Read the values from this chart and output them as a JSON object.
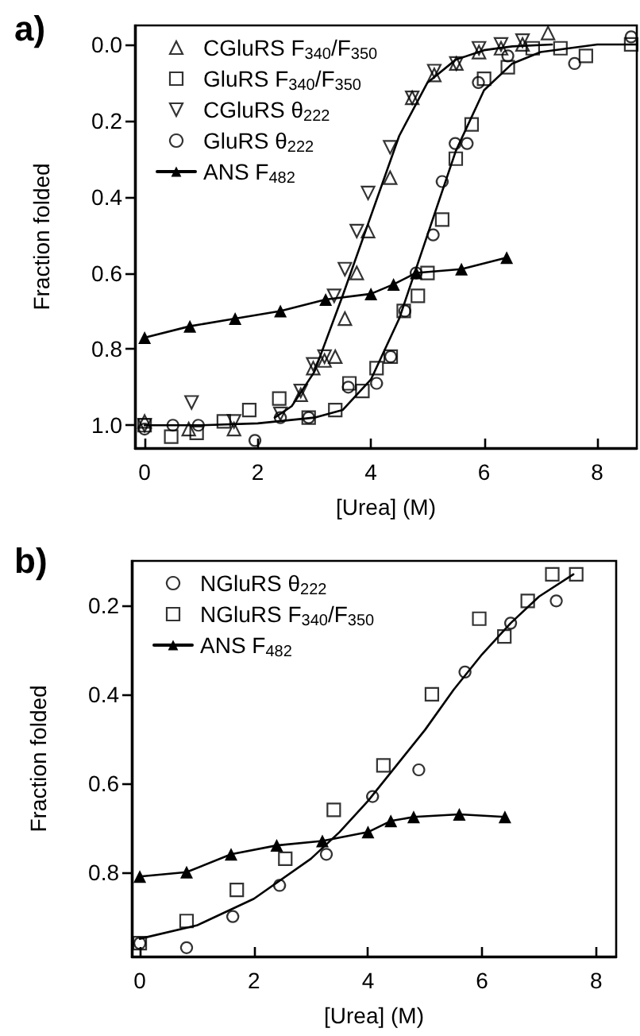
{
  "chart_data": [
    {
      "type": "scatter",
      "title": "a)",
      "xlabel": "[Urea] (M)",
      "ylabel": "Fraction folded",
      "xlim": [
        -0.17,
        8.7
      ],
      "xticks": [
        0,
        2,
        4,
        6,
        8
      ],
      "ylim": [
        1.06,
        -0.05
      ],
      "yticks": [
        {
          "value": 0,
          "label": "0.0"
        },
        0.2,
        0.4,
        0.6,
        0.8,
        {
          "value": 1,
          "label": "1.0"
        }
      ],
      "legend": "top left",
      "grid": false,
      "series": [
        {
          "name": "CGluRS F$_{340}$/F$_{350}$",
          "marker": "triangle",
          "color": "#000000",
          "x": [
            0,
            0.78,
            1.58,
            2.76,
            2.98,
            3.18,
            3.37,
            3.54,
            3.75,
            3.95,
            4.34,
            4.73,
            5.12,
            5.51,
            5.91,
            6.3,
            6.68,
            7.13
          ],
          "values": [
            0.99,
            1.01,
            1.01,
            0.92,
            0.85,
            0.83,
            0.82,
            0.72,
            0.6,
            0.49,
            0.35,
            0.14,
            0.08,
            0.05,
            0.02,
            0.01,
            0.0,
            -0.03
          ]
        },
        {
          "name": "GluRS F$_{340}$/F$_{350}$",
          "marker": "square",
          "color": "#000000",
          "x": [
            0,
            0.47,
            0.92,
            1.4,
            1.85,
            2.38,
            2.9,
            3.37,
            3.62,
            3.85,
            4.1,
            4.35,
            4.58,
            4.83,
            5.0,
            5.26,
            5.5,
            5.78,
            6.0,
            6.42,
            6.86,
            7.35,
            7.8,
            8.6
          ],
          "values": [
            1.0,
            1.03,
            1.02,
            0.99,
            0.96,
            0.93,
            0.98,
            0.96,
            0.89,
            0.91,
            0.85,
            0.82,
            0.7,
            0.66,
            0.6,
            0.46,
            0.3,
            0.21,
            0.09,
            0.06,
            0.01,
            0.01,
            0.03,
            0.0
          ]
        },
        {
          "name": "CGluRS θ$_{222}$",
          "marker": "triangle-down",
          "color": "#000000",
          "x": [
            0,
            0.83,
            1.58,
            2.4,
            2.76,
            2.98,
            3.18,
            3.35,
            3.54,
            3.75,
            3.95,
            4.34,
            4.73,
            5.12,
            5.51,
            5.91,
            6.3,
            6.68
          ],
          "values": [
            1.0,
            0.94,
            0.99,
            0.97,
            0.91,
            0.84,
            0.82,
            0.66,
            0.59,
            0.49,
            0.39,
            0.27,
            0.14,
            0.07,
            0.05,
            0.01,
            0.0,
            -0.01
          ]
        },
        {
          "name": "GluRS θ$_{222}$",
          "marker": "circle",
          "color": "#000000",
          "x": [
            0,
            0.5,
            0.95,
            1.95,
            2.4,
            2.9,
            3.6,
            4.1,
            4.35,
            4.6,
            4.8,
            5.1,
            5.26,
            5.49,
            5.7,
            5.9,
            6.42,
            7.6,
            8.6
          ],
          "values": [
            1.01,
            1.0,
            1.0,
            1.04,
            0.98,
            0.98,
            0.9,
            0.89,
            0.82,
            0.7,
            0.6,
            0.5,
            0.36,
            0.26,
            0.26,
            0.1,
            0.03,
            0.05,
            -0.02
          ]
        },
        {
          "name": "ANS F$_{482}$",
          "type": "line",
          "marker": "triangle",
          "color": "#000000",
          "x": [
            0,
            0.8,
            1.6,
            2.4,
            3.2,
            4.0,
            4.4,
            4.8,
            5.6,
            6.4
          ],
          "values": [
            0.77,
            0.74,
            0.72,
            0.7,
            0.67,
            0.655,
            0.63,
            0.6,
            0.59,
            0.56
          ]
        },
        {
          "type": "line",
          "marker": "none",
          "color": "#000000",
          "x": [
            2.3,
            2.6,
            3.0,
            3.5,
            4.0,
            4.5,
            5.0,
            5.5,
            6.0,
            6.5,
            7.2
          ],
          "values": [
            0.98,
            0.95,
            0.86,
            0.66,
            0.45,
            0.24,
            0.1,
            0.04,
            0.015,
            0.005,
            0.0
          ]
        },
        {
          "type": "line",
          "marker": "none",
          "color": "#000000",
          "x": [
            0,
            1,
            2,
            3,
            3.5,
            4.0,
            4.5,
            5.0,
            5.5,
            6.0,
            6.5,
            7.0,
            8.0,
            8.7
          ],
          "values": [
            1.0,
            1.0,
            0.995,
            0.98,
            0.96,
            0.88,
            0.72,
            0.5,
            0.28,
            0.12,
            0.05,
            0.02,
            0.0,
            0.0
          ]
        }
      ]
    },
    {
      "type": "scatter",
      "title": "b)",
      "xlabel": "[Urea] (M)",
      "ylabel": "Fraction folded",
      "xlim": [
        -0.14,
        8.35
      ],
      "xticks": [
        0,
        2,
        4,
        6,
        8
      ],
      "ylim": [
        0.99,
        0.1
      ],
      "yticks": [
        0.2,
        0.4,
        0.6,
        0.8
      ],
      "legend": "top left",
      "grid": false,
      "series": [
        {
          "name": "NGluRS θ$_{222}$",
          "marker": "circle",
          "color": "#000000",
          "x": [
            0,
            0.82,
            1.63,
            2.45,
            3.27,
            4.08,
            4.89,
            5.7,
            6.5,
            7.3
          ],
          "values": [
            0.96,
            0.97,
            0.9,
            0.83,
            0.76,
            0.63,
            0.57,
            0.35,
            0.24,
            0.19
          ]
        },
        {
          "name": "NGluRS F$_{340}$/F$_{350}$",
          "marker": "square",
          "color": "#000000",
          "x": [
            0,
            0.82,
            1.7,
            2.55,
            3.4,
            4.27,
            5.12,
            5.95,
            6.39,
            6.8,
            7.23,
            7.65
          ],
          "values": [
            0.96,
            0.91,
            0.84,
            0.77,
            0.66,
            0.56,
            0.4,
            0.23,
            0.27,
            0.19,
            0.13,
            0.13
          ]
        },
        {
          "name": "ANS F$_{482}$",
          "type": "line",
          "marker": "triangle",
          "color": "#000000",
          "x": [
            0,
            0.82,
            1.6,
            2.4,
            3.2,
            4.0,
            4.4,
            4.8,
            5.6,
            6.4
          ],
          "values": [
            0.81,
            0.8,
            0.76,
            0.74,
            0.73,
            0.71,
            0.685,
            0.676,
            0.67,
            0.676
          ]
        },
        {
          "type": "line",
          "marker": "none",
          "color": "#000000",
          "x": [
            0,
            1,
            2,
            3,
            3.5,
            4,
            4.5,
            5,
            5.5,
            6,
            6.5,
            7,
            7.6
          ],
          "values": [
            0.95,
            0.92,
            0.86,
            0.77,
            0.71,
            0.64,
            0.56,
            0.48,
            0.39,
            0.31,
            0.24,
            0.18,
            0.13
          ]
        }
      ]
    }
  ]
}
